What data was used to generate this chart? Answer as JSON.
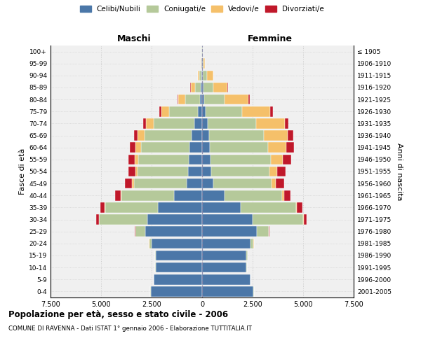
{
  "age_groups": [
    "0-4",
    "5-9",
    "10-14",
    "15-19",
    "20-24",
    "25-29",
    "30-34",
    "35-39",
    "40-44",
    "45-49",
    "50-54",
    "55-59",
    "60-64",
    "65-69",
    "70-74",
    "75-79",
    "80-84",
    "85-89",
    "90-94",
    "95-99",
    "100+"
  ],
  "birth_years": [
    "2001-2005",
    "1996-2000",
    "1991-1995",
    "1986-1990",
    "1981-1985",
    "1976-1980",
    "1971-1975",
    "1966-1970",
    "1961-1965",
    "1956-1960",
    "1951-1955",
    "1946-1950",
    "1941-1945",
    "1936-1940",
    "1931-1935",
    "1926-1930",
    "1921-1925",
    "1916-1920",
    "1911-1915",
    "1906-1910",
    "≤ 1905"
  ],
  "maschi": {
    "celibi": [
      2550,
      2400,
      2300,
      2300,
      2500,
      2800,
      2700,
      2200,
      1400,
      780,
      680,
      650,
      620,
      530,
      380,
      220,
      120,
      60,
      30,
      20,
      10
    ],
    "coniugati": [
      5,
      5,
      10,
      30,
      120,
      500,
      2400,
      2600,
      2600,
      2600,
      2500,
      2500,
      2400,
      2300,
      2000,
      1400,
      700,
      300,
      100,
      30,
      10
    ],
    "vedovi": [
      0,
      0,
      0,
      1,
      2,
      5,
      10,
      20,
      40,
      80,
      120,
      200,
      280,
      350,
      400,
      400,
      350,
      200,
      80,
      20,
      5
    ],
    "divorziati": [
      0,
      0,
      0,
      2,
      10,
      30,
      120,
      230,
      280,
      350,
      330,
      300,
      280,
      200,
      150,
      100,
      40,
      20,
      10,
      5,
      2
    ]
  },
  "femmine": {
    "nubili": [
      2550,
      2400,
      2200,
      2200,
      2400,
      2700,
      2500,
      1900,
      1100,
      550,
      450,
      400,
      380,
      350,
      280,
      180,
      100,
      60,
      40,
      20,
      10
    ],
    "coniugate": [
      3,
      5,
      10,
      40,
      150,
      600,
      2500,
      2750,
      2850,
      2900,
      2900,
      3000,
      2900,
      2700,
      2400,
      1800,
      1000,
      500,
      200,
      50,
      10
    ],
    "vedove": [
      0,
      0,
      1,
      2,
      5,
      10,
      20,
      50,
      100,
      200,
      350,
      600,
      900,
      1200,
      1400,
      1400,
      1200,
      700,
      300,
      80,
      20
    ],
    "divorziate": [
      0,
      0,
      0,
      3,
      12,
      40,
      140,
      260,
      320,
      400,
      420,
      420,
      360,
      280,
      200,
      120,
      60,
      30,
      15,
      5,
      2
    ]
  },
  "colors": {
    "celibi": "#4b77a8",
    "coniugati": "#b5c99a",
    "vedovi": "#f5c06a",
    "divorziati": "#c0182a"
  },
  "xlim": 7500,
  "xticks": [
    -7500,
    -5000,
    -2500,
    0,
    2500,
    5000,
    7500
  ],
  "title": "Popolazione per età, sesso e stato civile - 2006",
  "subtitle": "COMUNE DI RAVENNA - Dati ISTAT 1° gennaio 2006 - Elaborazione TUTTITALIA.IT",
  "ylabel_left": "Fasce di età",
  "ylabel_right": "Anni di nascita",
  "xlabel_maschi": "Maschi",
  "xlabel_femmine": "Femmine",
  "bg_color": "#f0f0f0",
  "grid_color": "#cccccc"
}
